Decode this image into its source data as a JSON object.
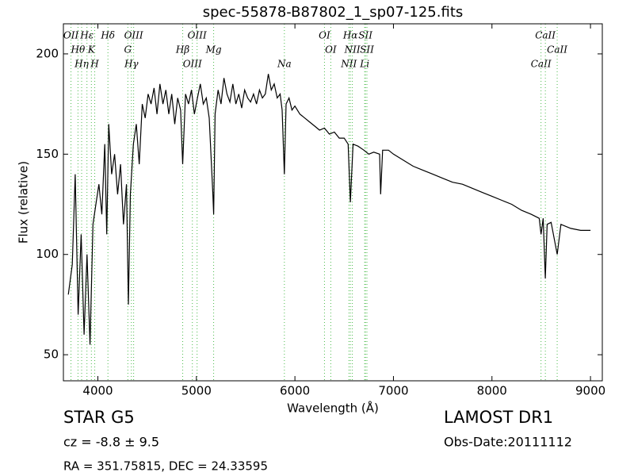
{
  "chart_data": {
    "type": "line",
    "title": "spec-55878-B87802_1_sp07-125.fits",
    "x_label": "Wavelength (Å)",
    "y_label": "Flux (relative)",
    "xlim": [
      3650,
      9120
    ],
    "ylim": [
      37,
      215
    ],
    "xticks": [
      4000,
      5000,
      6000,
      7000,
      8000,
      9000
    ],
    "yticks": [
      50,
      100,
      150,
      200
    ],
    "grid": false,
    "series": [
      {
        "name": "flux",
        "color": "#000000",
        "x": [
          3700,
          3740,
          3770,
          3800,
          3830,
          3860,
          3890,
          3920,
          3950,
          3980,
          4010,
          4040,
          4070,
          4090,
          4110,
          4140,
          4170,
          4200,
          4230,
          4260,
          4290,
          4310,
          4330,
          4360,
          4390,
          4420,
          4450,
          4480,
          4510,
          4540,
          4570,
          4600,
          4630,
          4660,
          4690,
          4720,
          4750,
          4780,
          4810,
          4840,
          4861,
          4890,
          4920,
          4950,
          4980,
          5010,
          5040,
          5070,
          5100,
          5130,
          5167,
          5175,
          5190,
          5220,
          5250,
          5280,
          5310,
          5340,
          5370,
          5400,
          5430,
          5460,
          5490,
          5520,
          5550,
          5580,
          5610,
          5640,
          5670,
          5700,
          5730,
          5760,
          5790,
          5820,
          5850,
          5870,
          5893,
          5910,
          5940,
          5970,
          6000,
          6050,
          6100,
          6150,
          6200,
          6250,
          6300,
          6350,
          6400,
          6450,
          6500,
          6540,
          6563,
          6590,
          6640,
          6700,
          6750,
          6800,
          6860,
          6870,
          6890,
          6950,
          7000,
          7100,
          7200,
          7300,
          7400,
          7500,
          7600,
          7700,
          7800,
          7900,
          8000,
          8100,
          8200,
          8300,
          8400,
          8480,
          8498,
          8520,
          8542,
          8560,
          8600,
          8662,
          8700,
          8800,
          8900,
          9000
        ],
        "values": [
          80,
          95,
          140,
          70,
          110,
          60,
          100,
          55,
          115,
          125,
          135,
          120,
          155,
          110,
          165,
          140,
          150,
          130,
          145,
          115,
          135,
          75,
          130,
          155,
          165,
          145,
          175,
          168,
          180,
          175,
          183,
          170,
          185,
          175,
          182,
          170,
          180,
          165,
          178,
          172,
          145,
          180,
          175,
          182,
          170,
          178,
          185,
          175,
          178,
          168,
          130,
          120,
          170,
          182,
          175,
          188,
          180,
          176,
          185,
          175,
          180,
          173,
          182,
          178,
          176,
          180,
          175,
          182,
          178,
          180,
          190,
          182,
          185,
          178,
          180,
          172,
          140,
          175,
          178,
          172,
          174,
          170,
          168,
          166,
          164,
          162,
          163,
          160,
          161,
          158,
          158,
          155,
          126,
          155,
          154,
          152,
          150,
          151,
          150,
          130,
          152,
          152,
          150,
          147,
          144,
          142,
          140,
          138,
          136,
          135,
          133,
          131,
          129,
          127,
          125,
          122,
          120,
          118,
          110,
          118,
          88,
          115,
          116,
          100,
          115,
          113,
          112,
          112
        ]
      }
    ],
    "lines": [
      {
        "label": "OII",
        "wavelength": 3727
      },
      {
        "label": "Hθ",
        "wavelength": 3798
      },
      {
        "label": "Hη",
        "wavelength": 3835
      },
      {
        "label": "Hε",
        "wavelength": 3889
      },
      {
        "label": "K",
        "wavelength": 3934
      },
      {
        "label": "H",
        "wavelength": 3968
      },
      {
        "label": "Hδ",
        "wavelength": 4102
      },
      {
        "label": "G",
        "wavelength": 4304
      },
      {
        "label": "Hγ",
        "wavelength": 4340
      },
      {
        "label": "OIII",
        "wavelength": 4363
      },
      {
        "label": "Hβ",
        "wavelength": 4861
      },
      {
        "label": "OIII",
        "wavelength": 4959
      },
      {
        "label": "OIII",
        "wavelength": 5007
      },
      {
        "label": "Mg",
        "wavelength": 5175
      },
      {
        "label": "Na",
        "wavelength": 5893
      },
      {
        "label": "OI",
        "wavelength": 6300
      },
      {
        "label": "OI",
        "wavelength": 6364
      },
      {
        "label": "NII",
        "wavelength": 6548
      },
      {
        "label": "Hα",
        "wavelength": 6563
      },
      {
        "label": "NII",
        "wavelength": 6583
      },
      {
        "label": "Li",
        "wavelength": 6708
      },
      {
        "label": "SII",
        "wavelength": 6716
      },
      {
        "label": "SII",
        "wavelength": 6731
      },
      {
        "label": "CaII",
        "wavelength": 8498
      },
      {
        "label": "CaII",
        "wavelength": 8542
      },
      {
        "label": "CaII",
        "wavelength": 8662
      }
    ],
    "lines_color": "#4cbb4c",
    "info": {
      "class": "STAR   G5",
      "cz": "cz = -8.8 ± 9.5",
      "coords": "RA = 351.75815, DEC = 24.33595",
      "survey": "LAMOST DR1",
      "date": "Obs-Date:20111112"
    }
  }
}
